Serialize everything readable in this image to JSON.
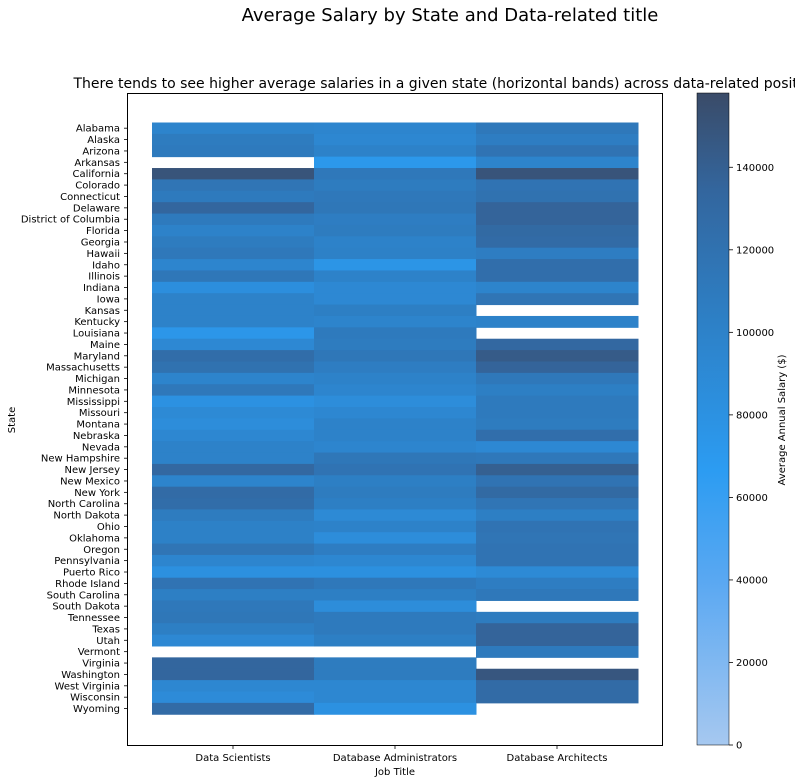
{
  "chart_data": {
    "type": "heatmap",
    "title": "Average Salary by State and Data-related title",
    "subtitle": "There tends to see higher average salaries in a given state (horizontal bands) across data-related positions",
    "xlabel": "Job Title",
    "ylabel": "State",
    "colorbar_label": "Average Annual Salary ($)",
    "colorbar_ticks": [
      0,
      20000,
      40000,
      60000,
      80000,
      100000,
      120000,
      140000
    ],
    "colorbar_range": [
      0,
      158000
    ],
    "x_categories": [
      "Data Scientists",
      "Database Administrators",
      "Database Architects"
    ],
    "y_categories": [
      "Alabama",
      "Alaska",
      "Arizona",
      "Arkansas",
      "California",
      "Colorado",
      "Connecticut",
      "Delaware",
      "District of Columbia",
      "Florida",
      "Georgia",
      "Hawaii",
      "Idaho",
      "Illinois",
      "Indiana",
      "Iowa",
      "Kansas",
      "Kentucky",
      "Louisiana",
      "Maine",
      "Maryland",
      "Massachusetts",
      "Michigan",
      "Minnesota",
      "Mississippi",
      "Missouri",
      "Montana",
      "Nebraska",
      "Nevada",
      "New Hampshire",
      "New Jersey",
      "New Mexico",
      "New York",
      "North Carolina",
      "North Dakota",
      "Ohio",
      "Oklahoma",
      "Oregon",
      "Pennsylvania",
      "Puerto Rico",
      "Rhode Island",
      "South Carolina",
      "South Dakota",
      "Tennessee",
      "Texas",
      "Utah",
      "Vermont",
      "Virginia",
      "Washington",
      "West Virginia",
      "Wisconsin",
      "Wyoming"
    ],
    "values": [
      [
        98000,
        96000,
        112000
      ],
      [
        108000,
        94000,
        106000
      ],
      [
        110000,
        100000,
        118000
      ],
      [
        null,
        72000,
        98000
      ],
      [
        150000,
        112000,
        150000
      ],
      [
        116000,
        108000,
        118000
      ],
      [
        110000,
        112000,
        120000
      ],
      [
        134000,
        114000,
        136000
      ],
      [
        110000,
        106000,
        136000
      ],
      [
        100000,
        108000,
        130000
      ],
      [
        108000,
        100000,
        128000
      ],
      [
        112000,
        102000,
        106000
      ],
      [
        96000,
        76000,
        124000
      ],
      [
        114000,
        100000,
        124000
      ],
      [
        84000,
        92000,
        98000
      ],
      [
        100000,
        92000,
        116000
      ],
      [
        100000,
        104000,
        null
      ],
      [
        100000,
        98000,
        100000
      ],
      [
        74000,
        110000,
        null
      ],
      [
        92000,
        108000,
        132000
      ],
      [
        126000,
        114000,
        144000
      ],
      [
        120000,
        106000,
        136000
      ],
      [
        98000,
        100000,
        112000
      ],
      [
        112000,
        96000,
        104000
      ],
      [
        80000,
        86000,
        110000
      ],
      [
        90000,
        94000,
        110000
      ],
      [
        86000,
        100000,
        108000
      ],
      [
        94000,
        100000,
        124000
      ],
      [
        100000,
        96000,
        92000
      ],
      [
        100000,
        114000,
        112000
      ],
      [
        132000,
        118000,
        140000
      ],
      [
        98000,
        104000,
        118000
      ],
      [
        128000,
        108000,
        130000
      ],
      [
        126000,
        104000,
        116000
      ],
      [
        108000,
        90000,
        104000
      ],
      [
        102000,
        100000,
        118000
      ],
      [
        102000,
        86000,
        116000
      ],
      [
        116000,
        106000,
        118000
      ],
      [
        96000,
        94000,
        118000
      ],
      [
        82000,
        82000,
        90000
      ],
      [
        118000,
        112000,
        106000
      ],
      [
        104000,
        104000,
        112000
      ],
      [
        112000,
        86000,
        null
      ],
      [
        114000,
        110000,
        108000
      ],
      [
        104000,
        110000,
        136000
      ],
      [
        92000,
        104000,
        136000
      ],
      [
        null,
        null,
        110000
      ],
      [
        134000,
        108000,
        null
      ],
      [
        134000,
        108000,
        148000
      ],
      [
        94000,
        94000,
        128000
      ],
      [
        88000,
        94000,
        128000
      ],
      [
        128000,
        80000,
        null
      ]
    ]
  }
}
